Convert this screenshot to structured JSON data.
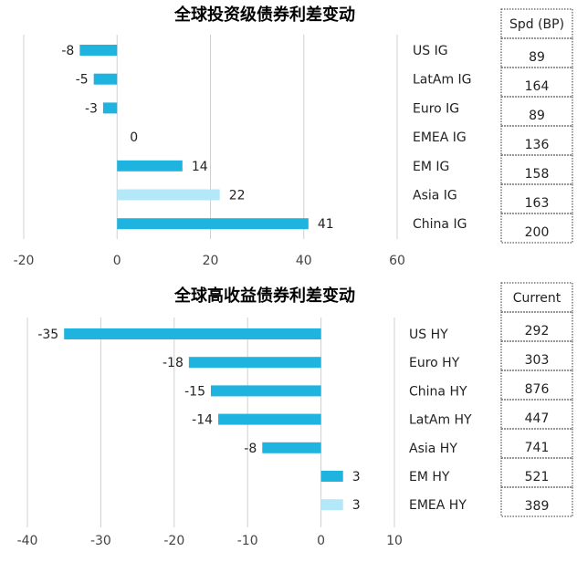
{
  "colors": {
    "bar": "#1fb4df",
    "bar_highlight": "#b3e8f8",
    "grid": "#d0d0d0",
    "box_border": "#333333"
  },
  "chart_data": [
    {
      "type": "bar",
      "orientation": "horizontal",
      "title": "全球投资级债券利差变动",
      "categories": [
        "US IG",
        "LatAm IG",
        "Euro IG",
        "EMEA IG",
        "EM IG",
        "Asia IG",
        "China IG"
      ],
      "values": [
        -8,
        -5,
        -3,
        0,
        14,
        22,
        41
      ],
      "highlight": [
        "Asia IG"
      ],
      "xlim": [
        -20,
        60
      ],
      "xticks": [
        -20,
        0,
        20,
        40,
        60
      ],
      "grid": true,
      "side_table": {
        "header": "Spd (BP)",
        "values": [
          "89",
          "164",
          "89",
          "136",
          "158",
          "163",
          "200"
        ]
      }
    },
    {
      "type": "bar",
      "orientation": "horizontal",
      "title": "全球高收益债券利差变动",
      "categories": [
        "US HY",
        "Euro HY",
        "China HY",
        "LatAm HY",
        "Asia HY",
        "EM HY",
        "EMEA HY"
      ],
      "values": [
        -35,
        -18,
        -15,
        -14,
        -8,
        3,
        3
      ],
      "highlight": [
        "EMEA HY"
      ],
      "xlim": [
        -40,
        10
      ],
      "xticks": [
        -40,
        -30,
        -20,
        -10,
        0,
        10
      ],
      "grid": true,
      "side_table": {
        "header": "Current",
        "values": [
          "292",
          "303",
          "876",
          "447",
          "741",
          "521",
          "389"
        ]
      }
    }
  ]
}
